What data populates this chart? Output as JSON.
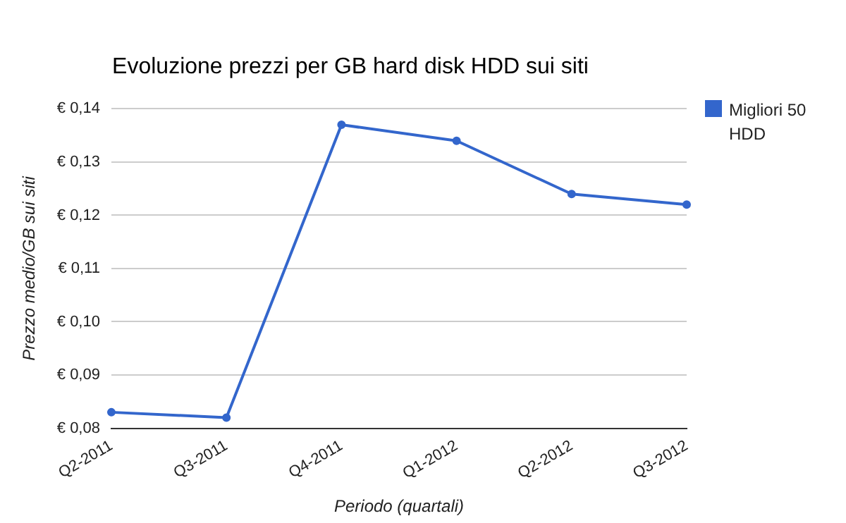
{
  "chart_data": {
    "type": "line",
    "title": "Evoluzione prezzi per GB hard disk HDD sui siti",
    "xlabel": "Periodo (quartali)",
    "ylabel": "Prezzo medio/GB sui siti",
    "categories": [
      "Q2-2011",
      "Q3-2011",
      "Q4-2011",
      "Q1-2012",
      "Q2-2012",
      "Q3-2012"
    ],
    "series": [
      {
        "name": "Migliori 50 HDD",
        "color": "#3366cc",
        "values": [
          0.083,
          0.082,
          0.137,
          0.134,
          0.124,
          0.122
        ]
      }
    ],
    "ylim": [
      0.08,
      0.14
    ],
    "yticks": [
      {
        "value": 0.08,
        "label": "€ 0,08"
      },
      {
        "value": 0.09,
        "label": "€ 0,09"
      },
      {
        "value": 0.1,
        "label": "€ 0,10"
      },
      {
        "value": 0.11,
        "label": "€ 0,11"
      },
      {
        "value": 0.12,
        "label": "€ 0,12"
      },
      {
        "value": 0.13,
        "label": "€ 0,13"
      },
      {
        "value": 0.14,
        "label": "€ 0,14"
      }
    ],
    "grid": "y",
    "legend": "top right",
    "marker": "circle",
    "line_style": "solid"
  }
}
